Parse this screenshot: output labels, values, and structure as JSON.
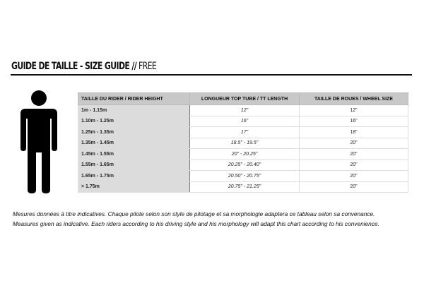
{
  "title": {
    "bold": "GUIDE DE TAILLE - SIZE GUIDE //",
    "light": " FREE"
  },
  "table": {
    "headers": [
      "TAILLE DU RIDER / RIDER HEIGHT",
      "LONGUEUR TOP TUBE / TT LENGTH",
      "TAILLE DE ROUES / WHEEL SIZE"
    ],
    "rows": [
      [
        "1m - 1.15m",
        "12\"",
        "12\""
      ],
      [
        "1.10m - 1.25m",
        "16\"",
        "16\""
      ],
      [
        "1.25m - 1.35m",
        "17\"",
        "18\""
      ],
      [
        "1.35m - 1.45m",
        "18.5\" - 19.5\"",
        "20\""
      ],
      [
        "1.45m - 1.55m",
        "20\" - 20.25\"",
        "20\""
      ],
      [
        "1.55m - 1.65m",
        "20.25\" - 20.40\"",
        "20\""
      ],
      [
        "1.65m - 1.75m",
        "20.50\" - 20.75\"",
        "20\""
      ],
      [
        "> 1.75m",
        "20.75\" - 21.25\"",
        "20\""
      ]
    ]
  },
  "notes": [
    "Mesures données à titre indicatives. Chaque pilote selon son style de pilotage et sa morphologie adaptera ce tableau selon sa convenance.",
    "Measures given as indicative. Each riders according to his driving style and his morphology will adapt this chart according to his convenience."
  ],
  "icons": {
    "figure": "person-icon"
  }
}
